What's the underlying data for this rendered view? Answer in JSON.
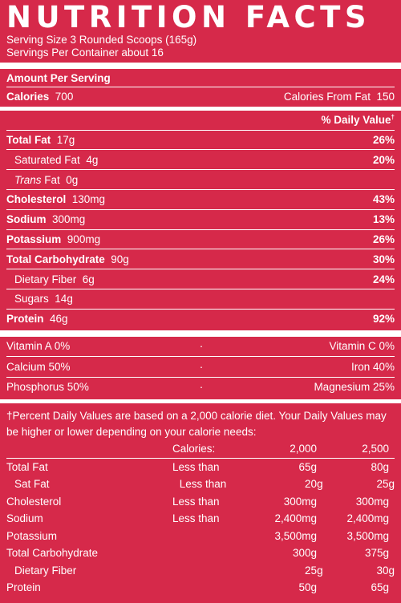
{
  "title": "NUTRITION FACTS",
  "serving_size": "Serving Size 3 Rounded Scoops (165g)",
  "servings_per_container": "Servings Per Container about 16",
  "amount_per_serving": "Amount Per Serving",
  "calories": {
    "label": "Calories",
    "value": "700",
    "from_fat_label": "Calories From Fat",
    "from_fat_value": "150"
  },
  "dv_header": "% Daily Value",
  "dagger": "†",
  "nutrients": [
    {
      "label": "Total Fat",
      "amount": "17g",
      "dv": "26%"
    },
    {
      "label": "Saturated Fat",
      "amount": "4g",
      "dv": "20%"
    },
    {
      "label": "Trans",
      "label_suffix": " Fat",
      "amount": "0g",
      "dv": ""
    },
    {
      "label": "Cholesterol",
      "amount": "130mg",
      "dv": "43%"
    },
    {
      "label": "Sodium",
      "amount": "300mg",
      "dv": "13%"
    },
    {
      "label": "Potassium",
      "amount": "900mg",
      "dv": "26%"
    },
    {
      "label": "Total Carbohydrate",
      "amount": "90g",
      "dv": "30%"
    },
    {
      "label": "Dietary Fiber",
      "amount": "6g",
      "dv": "24%"
    },
    {
      "label": "Sugars",
      "amount": "14g",
      "dv": ""
    },
    {
      "label": "Protein",
      "amount": "46g",
      "dv": "92%"
    }
  ],
  "vitamins": [
    {
      "left": "Vitamin A  0%",
      "dot": "·",
      "right": "Vitamin C  0%"
    },
    {
      "left": "Calcium  50%",
      "dot": "·",
      "right": "Iron  40%"
    },
    {
      "left": "Phosphorus  50%",
      "dot": "·",
      "right": "Magnesium  25%"
    }
  ],
  "footnote": "†Percent Daily Values are based on a 2,000 calorie diet. Your Daily Values may be higher or lower depending on your calorie needs:",
  "dv_table": {
    "header": [
      "",
      "Calories:",
      "2,000",
      "2,500"
    ],
    "rows": [
      [
        "Total Fat",
        "Less than",
        "65g",
        "80g"
      ],
      [
        "Sat Fat",
        "Less than",
        "20g",
        "25g"
      ],
      [
        "Cholesterol",
        "Less than",
        "300mg",
        "300mg"
      ],
      [
        "Sodium",
        "Less than",
        "2,400mg",
        "2,400mg"
      ],
      [
        "Potassium",
        "",
        "3,500mg",
        "3,500mg"
      ],
      [
        "Total Carbohydrate",
        "",
        "300g",
        "375g"
      ],
      [
        "Dietary Fiber",
        "",
        "25g",
        "30g"
      ],
      [
        "Protein",
        "",
        "50g",
        "65g"
      ]
    ]
  },
  "colors": {
    "background": "#d6294a",
    "text": "#ffffff"
  }
}
